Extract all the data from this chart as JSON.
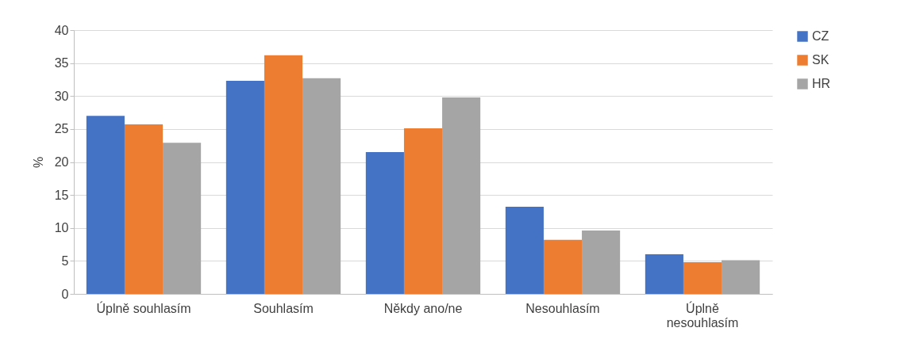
{
  "chart_data": {
    "type": "bar",
    "ylabel": "%",
    "categories": [
      "Úplně souhlasím",
      "Souhlasím",
      "Někdy ano/ne",
      "Nesouhlasím",
      "Úplně nesouhlasím"
    ],
    "series": [
      {
        "name": "CZ",
        "color": "#4472c4",
        "values": [
          27.0,
          32.3,
          21.5,
          13.2,
          6.0
        ]
      },
      {
        "name": "SK",
        "color": "#ed7d31",
        "values": [
          25.7,
          36.2,
          25.1,
          8.2,
          4.8
        ]
      },
      {
        "name": "HR",
        "color": "#a5a5a5",
        "values": [
          22.9,
          32.7,
          29.8,
          9.6,
          5.1
        ]
      }
    ],
    "ylim": [
      0,
      40
    ],
    "yticks": [
      0,
      5,
      10,
      15,
      20,
      25,
      30,
      35,
      40
    ],
    "grid": "y",
    "legend": "right"
  }
}
